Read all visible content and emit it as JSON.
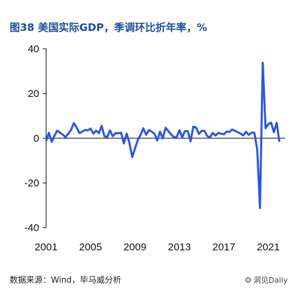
{
  "title": "图38 美国实际GDP，季调环比折年率，%",
  "source": "数据来源：Wind，毕马威分析",
  "watermark": {
    "text": "洞见Daily",
    "icon": "wechat-icon"
  },
  "colors": {
    "title": "#1f4e9c",
    "line": "#2b57e0",
    "axis": "#000000"
  },
  "chart_data": {
    "type": "line",
    "title": "图38 美国实际GDP，季调环比折年率，%",
    "xlabel": "",
    "ylabel": "",
    "xlim": [
      2001,
      2022.5
    ],
    "ylim": [
      -40,
      40
    ],
    "x_ticks": [
      2001,
      2005,
      2009,
      2013,
      2017,
      2021
    ],
    "y_ticks": [
      40,
      20,
      0,
      -20,
      -40
    ],
    "grid": false,
    "legend": "none",
    "series": [
      {
        "values": [
          [
            2001.0,
            -1.3
          ],
          [
            2001.25,
            2.5
          ],
          [
            2001.5,
            -1.6
          ],
          [
            2001.75,
            1.1
          ],
          [
            2002.0,
            3.4
          ],
          [
            2002.25,
            2.5
          ],
          [
            2002.5,
            1.6
          ],
          [
            2002.75,
            0.5
          ],
          [
            2003.0,
            2.1
          ],
          [
            2003.25,
            3.8
          ],
          [
            2003.5,
            6.8
          ],
          [
            2003.75,
            4.8
          ],
          [
            2004.0,
            2.3
          ],
          [
            2004.25,
            3.0
          ],
          [
            2004.5,
            3.7
          ],
          [
            2004.75,
            3.5
          ],
          [
            2005.0,
            4.3
          ],
          [
            2005.25,
            2.1
          ],
          [
            2005.5,
            3.4
          ],
          [
            2005.75,
            2.3
          ],
          [
            2006.0,
            5.5
          ],
          [
            2006.25,
            0.9
          ],
          [
            2006.5,
            0.6
          ],
          [
            2006.75,
            3.5
          ],
          [
            2007.0,
            0.9
          ],
          [
            2007.25,
            2.3
          ],
          [
            2007.5,
            2.2
          ],
          [
            2007.75,
            2.5
          ],
          [
            2008.0,
            -2.3
          ],
          [
            2008.25,
            2.1
          ],
          [
            2008.5,
            -2.1
          ],
          [
            2008.75,
            -8.5
          ],
          [
            2009.0,
            -4.6
          ],
          [
            2009.25,
            -0.7
          ],
          [
            2009.5,
            1.5
          ],
          [
            2009.75,
            4.5
          ],
          [
            2010.0,
            1.5
          ],
          [
            2010.25,
            3.7
          ],
          [
            2010.5,
            3.0
          ],
          [
            2010.75,
            2.0
          ],
          [
            2011.0,
            -1.0
          ],
          [
            2011.25,
            2.9
          ],
          [
            2011.5,
            -0.1
          ],
          [
            2011.75,
            4.7
          ],
          [
            2012.0,
            3.2
          ],
          [
            2012.25,
            1.7
          ],
          [
            2012.5,
            0.5
          ],
          [
            2012.75,
            0.5
          ],
          [
            2013.0,
            3.6
          ],
          [
            2013.25,
            0.5
          ],
          [
            2013.5,
            3.2
          ],
          [
            2013.75,
            3.2
          ],
          [
            2014.0,
            -1.4
          ],
          [
            2014.25,
            5.2
          ],
          [
            2014.5,
            4.8
          ],
          [
            2014.75,
            1.9
          ],
          [
            2015.0,
            3.3
          ],
          [
            2015.25,
            3.3
          ],
          [
            2015.5,
            1.0
          ],
          [
            2015.75,
            0.4
          ],
          [
            2016.0,
            2.4
          ],
          [
            2016.25,
            1.2
          ],
          [
            2016.5,
            2.4
          ],
          [
            2016.75,
            2.0
          ],
          [
            2017.0,
            1.8
          ],
          [
            2017.25,
            3.0
          ],
          [
            2017.5,
            2.8
          ],
          [
            2017.75,
            3.9
          ],
          [
            2018.0,
            3.3
          ],
          [
            2018.25,
            2.7
          ],
          [
            2018.5,
            2.1
          ],
          [
            2018.75,
            1.3
          ],
          [
            2019.0,
            2.9
          ],
          [
            2019.25,
            1.5
          ],
          [
            2019.5,
            2.6
          ],
          [
            2019.75,
            2.4
          ],
          [
            2020.0,
            -5.1
          ],
          [
            2020.25,
            -31.2
          ],
          [
            2020.5,
            33.8
          ],
          [
            2020.75,
            4.5
          ],
          [
            2021.0,
            6.3
          ],
          [
            2021.25,
            7.0
          ],
          [
            2021.5,
            2.7
          ],
          [
            2021.75,
            6.9
          ],
          [
            2022.0,
            -1.6
          ]
        ]
      }
    ]
  }
}
